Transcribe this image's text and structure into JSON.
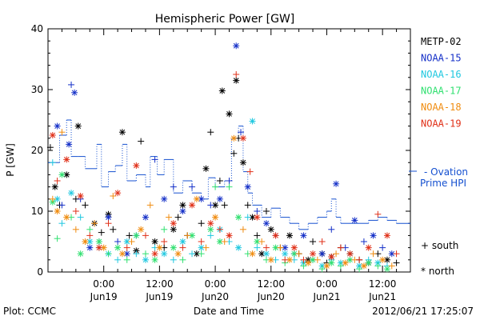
{
  "chart_data": {
    "type": "scatter",
    "title": "Hemispheric Power [GW]",
    "ylabel": "P [GW]",
    "xlabel": "Date and Time",
    "ylim": [
      0,
      40
    ],
    "y_ticks": [
      "0",
      "10",
      "20",
      "30",
      "40"
    ],
    "x_range_hours": [
      -6,
      72
    ],
    "x_ticks": [
      {
        "hour": 6,
        "time": "0:00",
        "date": "Jun19"
      },
      {
        "hour": 18,
        "time": "12:00",
        "date": "Jun19"
      },
      {
        "hour": 30,
        "time": "0:00",
        "date": "Jun20"
      },
      {
        "hour": 42,
        "time": "12:00",
        "date": "Jun20"
      },
      {
        "hour": 54,
        "time": "0:00",
        "date": "Jun21"
      },
      {
        "hour": 66,
        "time": "12:00",
        "date": "Jun21"
      }
    ],
    "series": [
      {
        "name": "METP-02",
        "color": "#000000",
        "points": [
          [
            -5.5,
            20.5
          ],
          [
            -4.5,
            14
          ],
          [
            -3.5,
            11
          ],
          [
            -2,
            16
          ],
          [
            0,
            12
          ],
          [
            0.5,
            24
          ],
          [
            2,
            11
          ],
          [
            4,
            8
          ],
          [
            5.5,
            6.5
          ],
          [
            7,
            9.5
          ],
          [
            8,
            7
          ],
          [
            10,
            23
          ],
          [
            11.5,
            6
          ],
          [
            13,
            3.5
          ],
          [
            14,
            21.5
          ],
          [
            17,
            5
          ],
          [
            19,
            4
          ],
          [
            21,
            7
          ],
          [
            22,
            9
          ],
          [
            23,
            11
          ],
          [
            24,
            6
          ],
          [
            26,
            3
          ],
          [
            27,
            8
          ],
          [
            28,
            17
          ],
          [
            29,
            23
          ],
          [
            30,
            11
          ],
          [
            31,
            15
          ],
          [
            31.5,
            29.8
          ],
          [
            32,
            11
          ],
          [
            33,
            26
          ],
          [
            34,
            19.5
          ],
          [
            34.5,
            31.5
          ],
          [
            35,
            22
          ],
          [
            36,
            18
          ],
          [
            37,
            11
          ],
          [
            38,
            9
          ],
          [
            39,
            6
          ],
          [
            40,
            3
          ],
          [
            41,
            10
          ],
          [
            42,
            7
          ],
          [
            44,
            4
          ],
          [
            46,
            6
          ],
          [
            48,
            3
          ],
          [
            50,
            2
          ],
          [
            51,
            5
          ],
          [
            53,
            3
          ],
          [
            54,
            1.5
          ],
          [
            55,
            2.5
          ],
          [
            57,
            4
          ],
          [
            59,
            3
          ],
          [
            61,
            2
          ],
          [
            63,
            1.5
          ],
          [
            65,
            3
          ],
          [
            67,
            2
          ],
          [
            69,
            1.5
          ]
        ]
      },
      {
        "name": "NOAA-15",
        "color": "#1530c8",
        "points": [
          [
            -4,
            24
          ],
          [
            -3,
            11
          ],
          [
            -1.5,
            21
          ],
          [
            -1,
            30.8
          ],
          [
            -0.3,
            29.5
          ],
          [
            1,
            12
          ],
          [
            3,
            4
          ],
          [
            5,
            5
          ],
          [
            7,
            9
          ],
          [
            9,
            5
          ],
          [
            11,
            3
          ],
          [
            13,
            6
          ],
          [
            15,
            9
          ],
          [
            17,
            18.5
          ],
          [
            19,
            12
          ],
          [
            21,
            14
          ],
          [
            23,
            10
          ],
          [
            25,
            14
          ],
          [
            27,
            12
          ],
          [
            29,
            11
          ],
          [
            31,
            12
          ],
          [
            33,
            15
          ],
          [
            34.5,
            37.2
          ],
          [
            35.5,
            23
          ],
          [
            37,
            14
          ],
          [
            39,
            10
          ],
          [
            41,
            8
          ],
          [
            43,
            6
          ],
          [
            45,
            4
          ],
          [
            47,
            3
          ],
          [
            49,
            6
          ],
          [
            51,
            2
          ],
          [
            53,
            3
          ],
          [
            55,
            7
          ],
          [
            56,
            14.5
          ],
          [
            58,
            4
          ],
          [
            60,
            8.5
          ],
          [
            62,
            5
          ],
          [
            64,
            6
          ],
          [
            66,
            4
          ],
          [
            68,
            3
          ]
        ]
      },
      {
        "name": "NOAA-16",
        "color": "#20c8e0",
        "points": [
          [
            -5,
            18
          ],
          [
            -4,
            12
          ],
          [
            -3,
            8
          ],
          [
            -1,
            13
          ],
          [
            1,
            9
          ],
          [
            3,
            5
          ],
          [
            5,
            4
          ],
          [
            7,
            3
          ],
          [
            9,
            2
          ],
          [
            11,
            5
          ],
          [
            13,
            3
          ],
          [
            15,
            2
          ],
          [
            17,
            4
          ],
          [
            19,
            3
          ],
          [
            21,
            2
          ],
          [
            23,
            5
          ],
          [
            25,
            3
          ],
          [
            27,
            4
          ],
          [
            29,
            6
          ],
          [
            31,
            7
          ],
          [
            33,
            5
          ],
          [
            35,
            4
          ],
          [
            37,
            9
          ],
          [
            38,
            24.8
          ],
          [
            39,
            4
          ],
          [
            41,
            3
          ],
          [
            43,
            2
          ],
          [
            45,
            3
          ],
          [
            47,
            2
          ],
          [
            49,
            1.5
          ],
          [
            51,
            2
          ],
          [
            53,
            1
          ],
          [
            55,
            2
          ],
          [
            57,
            1.5
          ],
          [
            59,
            2
          ],
          [
            61,
            1
          ],
          [
            63,
            2
          ],
          [
            65,
            1.5
          ],
          [
            67,
            1
          ]
        ]
      },
      {
        "name": "NOAA-17",
        "color": "#30e070",
        "points": [
          [
            -5,
            11.5
          ],
          [
            -4,
            5.5
          ],
          [
            -3,
            16
          ],
          [
            -1,
            9
          ],
          [
            1,
            3
          ],
          [
            3,
            7
          ],
          [
            5,
            5
          ],
          [
            7,
            3
          ],
          [
            9,
            4
          ],
          [
            11,
            2
          ],
          [
            13,
            6
          ],
          [
            15,
            3
          ],
          [
            17,
            2
          ],
          [
            19,
            7
          ],
          [
            21,
            4
          ],
          [
            23,
            2
          ],
          [
            25,
            6
          ],
          [
            27,
            3
          ],
          [
            29,
            7
          ],
          [
            30,
            14
          ],
          [
            31,
            5
          ],
          [
            33,
            14
          ],
          [
            35,
            9
          ],
          [
            37,
            3
          ],
          [
            39,
            5
          ],
          [
            41,
            2
          ],
          [
            43,
            4
          ],
          [
            45,
            1.5
          ],
          [
            47,
            3
          ],
          [
            49,
            1
          ],
          [
            51,
            2
          ],
          [
            53,
            0.5
          ],
          [
            55,
            1.5
          ],
          [
            57,
            1
          ],
          [
            59,
            2
          ],
          [
            61,
            0.5
          ],
          [
            63,
            1.5
          ],
          [
            65,
            1
          ],
          [
            67,
            0.5
          ]
        ]
      },
      {
        "name": "NOAA-18",
        "color": "#f08c10",
        "points": [
          [
            -5,
            12
          ],
          [
            -4,
            10
          ],
          [
            -3,
            23
          ],
          [
            -2,
            9
          ],
          [
            0,
            7
          ],
          [
            2,
            5
          ],
          [
            4,
            8
          ],
          [
            6,
            4
          ],
          [
            8,
            12.5
          ],
          [
            10,
            3
          ],
          [
            12,
            5
          ],
          [
            14,
            7
          ],
          [
            16,
            11
          ],
          [
            18,
            4
          ],
          [
            20,
            9
          ],
          [
            22,
            3
          ],
          [
            24,
            6
          ],
          [
            26,
            12
          ],
          [
            28,
            4
          ],
          [
            30,
            9
          ],
          [
            32,
            5
          ],
          [
            34,
            22
          ],
          [
            36,
            7
          ],
          [
            38,
            3
          ],
          [
            40,
            5
          ],
          [
            42,
            2
          ],
          [
            44,
            4
          ],
          [
            46,
            2
          ],
          [
            48,
            3
          ],
          [
            50,
            1.5
          ],
          [
            52,
            2
          ],
          [
            54,
            1
          ],
          [
            56,
            3
          ],
          [
            58,
            1.5
          ],
          [
            60,
            2
          ],
          [
            62,
            1
          ],
          [
            64,
            3
          ],
          [
            66,
            2
          ],
          [
            68,
            1
          ]
        ]
      },
      {
        "name": "NOAA-19",
        "color": "#e03018",
        "points": [
          [
            -5,
            22.5
          ],
          [
            -4,
            15
          ],
          [
            -2,
            18.5
          ],
          [
            0,
            10
          ],
          [
            1,
            12.5
          ],
          [
            3,
            6
          ],
          [
            5,
            4
          ],
          [
            7,
            8
          ],
          [
            9,
            13
          ],
          [
            11,
            4
          ],
          [
            13,
            17.5
          ],
          [
            15,
            6
          ],
          [
            17,
            3
          ],
          [
            19,
            5
          ],
          [
            21,
            8
          ],
          [
            23,
            4
          ],
          [
            25,
            11
          ],
          [
            27,
            5
          ],
          [
            29,
            8
          ],
          [
            31,
            7
          ],
          [
            33,
            6
          ],
          [
            34.5,
            32.5
          ],
          [
            36,
            22
          ],
          [
            37.5,
            16.5
          ],
          [
            39,
            9
          ],
          [
            41,
            4
          ],
          [
            43,
            6
          ],
          [
            45,
            2
          ],
          [
            47,
            4
          ],
          [
            49,
            2
          ],
          [
            51,
            3
          ],
          [
            53,
            5
          ],
          [
            55,
            2.5
          ],
          [
            57,
            4
          ],
          [
            59,
            3
          ],
          [
            61,
            2
          ],
          [
            63,
            4
          ],
          [
            65,
            9.5
          ],
          [
            67,
            6
          ],
          [
            69,
            3
          ]
        ]
      }
    ],
    "ovation_prime": {
      "name": "Ovation Prime HPI",
      "color": "#1550d0",
      "steps": [
        [
          -6,
          18
        ],
        [
          -3.5,
          22.5
        ],
        [
          -2,
          25
        ],
        [
          -1,
          19
        ],
        [
          0.5,
          19
        ],
        [
          2,
          17
        ],
        [
          4.5,
          21
        ],
        [
          5.5,
          14
        ],
        [
          7,
          16.5
        ],
        [
          8.5,
          17.5
        ],
        [
          10,
          21
        ],
        [
          11,
          15
        ],
        [
          13,
          16
        ],
        [
          15,
          14
        ],
        [
          16,
          19
        ],
        [
          17.5,
          16
        ],
        [
          19,
          18.5
        ],
        [
          21,
          13
        ],
        [
          23,
          15
        ],
        [
          25,
          13
        ],
        [
          27,
          12
        ],
        [
          28.5,
          15.5
        ],
        [
          30,
          14
        ],
        [
          32,
          15
        ],
        [
          33.5,
          22
        ],
        [
          35,
          24
        ],
        [
          36,
          16.5
        ],
        [
          37,
          13
        ],
        [
          38,
          11
        ],
        [
          40,
          9
        ],
        [
          42,
          10.5
        ],
        [
          44,
          9
        ],
        [
          46,
          8
        ],
        [
          48,
          7
        ],
        [
          50,
          8
        ],
        [
          52,
          9
        ],
        [
          54,
          10
        ],
        [
          55,
          12
        ],
        [
          56,
          9
        ],
        [
          57,
          8
        ],
        [
          59,
          8
        ],
        [
          61,
          8
        ],
        [
          63,
          8.5
        ],
        [
          65,
          9
        ],
        [
          67,
          8.5
        ],
        [
          69,
          8
        ],
        [
          72,
          8
        ]
      ]
    },
    "symbol_legend": [
      {
        "symbol": "+",
        "label": "south"
      },
      {
        "symbol": "*",
        "label": "north"
      }
    ],
    "footer_left": "Plot: CCMC",
    "footer_right": "2012/06/21 17:25:07",
    "ovation_legend_line1": "- Ovation",
    "ovation_legend_line2": "Prime HPI"
  }
}
